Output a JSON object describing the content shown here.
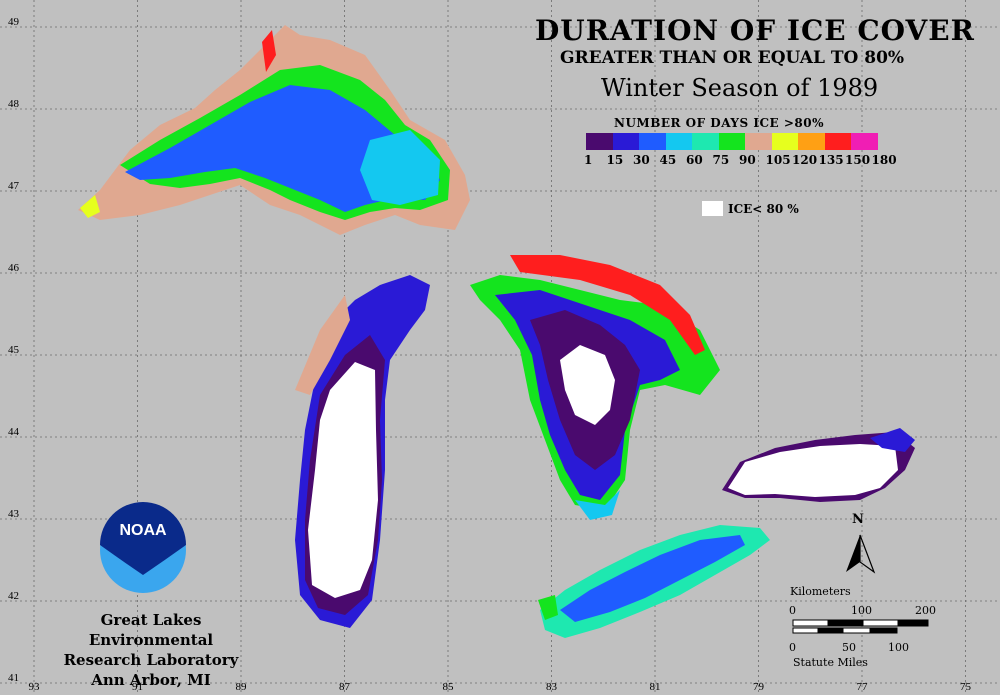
{
  "title": {
    "line1": "DURATION OF ICE COVER",
    "line2": "GREATER THAN OR EQUAL TO 80%",
    "line3": "Winter Season of 1989"
  },
  "legend": {
    "title": "NUMBER OF DAYS ICE >80%",
    "bins": [
      "1",
      "15",
      "30",
      "45",
      "60",
      "75",
      "90",
      "105",
      "120",
      "135",
      "150",
      "180"
    ],
    "colors": [
      "#4a0a6e",
      "#2a1ad6",
      "#1f5cff",
      "#14c8f0",
      "#1ee8b0",
      "#14e41e",
      "#e0a890",
      "#e6ff1e",
      "#ffa014",
      "#ff1e1e",
      "#f01eb4"
    ],
    "ice_lt_80_label": "ICE< 80 %",
    "ice_lt_80_color": "#ffffff"
  },
  "axes": {
    "latitude_ticks": [
      "49",
      "48",
      "47",
      "46",
      "45",
      "44",
      "43",
      "42",
      "41"
    ],
    "longitude_ticks": [
      "93",
      "91",
      "89",
      "87",
      "85",
      "83",
      "81",
      "79",
      "77",
      "75"
    ]
  },
  "organization": {
    "line1": "Great Lakes Environmental",
    "line2": "Research Laboratory",
    "line3": "Ann Arbor, MI"
  },
  "logo_text": "NOAA",
  "north_arrow_label": "N",
  "scale": {
    "km_label": "Kilometers",
    "km_values": [
      "0",
      "100",
      "200"
    ],
    "mi_label": "Statute Miles",
    "mi_values": [
      "0",
      "50",
      "100"
    ]
  },
  "lakes": [
    "Superior",
    "Michigan",
    "Huron",
    "Erie",
    "Ontario"
  ]
}
